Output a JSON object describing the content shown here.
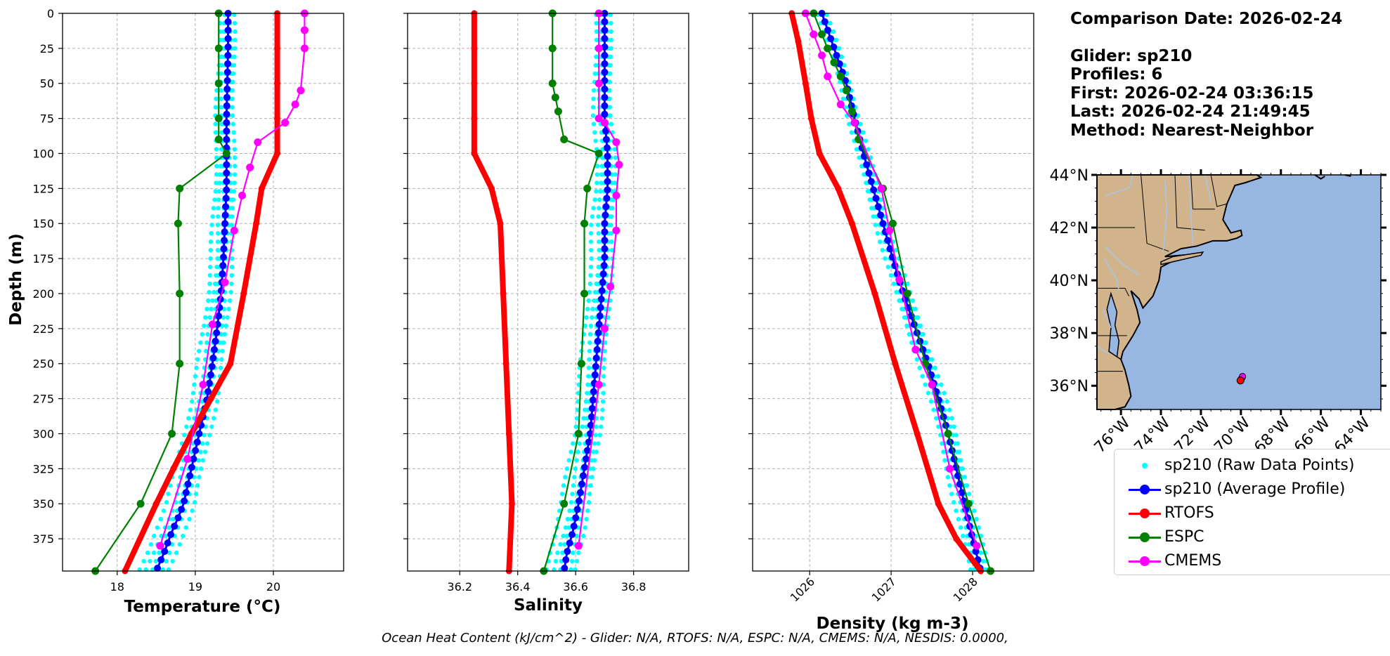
{
  "info": {
    "comparison": "Comparison Date: 2026-02-24",
    "glider": "Glider: sp210",
    "profiles": "Profiles: 6",
    "first": "First: 2026-02-24 03:36:15",
    "last": "Last: 2026-02-24 21:49:45",
    "method": "Method: Nearest-Neighbor"
  },
  "footer": "Ocean Heat Content (kJ/cm^2) - Glider: N/A,  RTOFS: N/A,  ESPC: N/A,  CMEMS: N/A,  NESDIS: 0.0000,",
  "legend": [
    {
      "label": "sp210 (Raw Data Points)",
      "color": "#00ffff",
      "style": "dots"
    },
    {
      "label": "sp210 (Average Profile)",
      "color": "#0000ff",
      "style": "line-marker"
    },
    {
      "label": "RTOFS",
      "color": "#ff0000",
      "style": "line-marker"
    },
    {
      "label": "ESPC",
      "color": "#008000",
      "style": "line-marker"
    },
    {
      "label": "CMEMS",
      "color": "#ff00ff",
      "style": "line-marker"
    }
  ],
  "chart_data": [
    {
      "type": "line",
      "xlabel": "Temperature (°C)",
      "ylabel": "Depth (m)",
      "xlim": [
        17.3,
        20.9
      ],
      "ylim": [
        398,
        0
      ],
      "xticks": [
        18,
        19,
        20
      ],
      "yticks": [
        0,
        25,
        50,
        75,
        100,
        125,
        150,
        175,
        200,
        225,
        250,
        275,
        300,
        325,
        350,
        375
      ],
      "grid": true,
      "series": [
        {
          "name": "sp210 (Average Profile)",
          "color": "#0000ff",
          "x": [
            19.42,
            19.42,
            19.41,
            19.4,
            19.4,
            19.4,
            19.38,
            19.36,
            19.33,
            19.28,
            19.22,
            19.15,
            19.05,
            18.95,
            18.85,
            18.78,
            18.7,
            18.6,
            18.5
          ],
          "y": [
            0,
            25,
            50,
            75,
            100,
            125,
            150,
            175,
            200,
            225,
            250,
            275,
            300,
            325,
            350,
            360,
            370,
            385,
            398
          ]
        },
        {
          "name": "RTOFS",
          "color": "#ff0000",
          "x": [
            20.05,
            20.05,
            20.05,
            20.05,
            20.05,
            19.85,
            19.78,
            19.62,
            19.45,
            19.2,
            18.95,
            18.72,
            18.5,
            18.1
          ],
          "y": [
            0,
            25,
            50,
            75,
            100,
            125,
            150,
            200,
            250,
            275,
            300,
            325,
            350,
            398
          ]
        },
        {
          "name": "ESPC",
          "color": "#008000",
          "x": [
            19.3,
            19.3,
            19.3,
            19.3,
            19.3,
            19.4,
            18.8,
            18.78,
            18.8,
            18.8,
            18.7,
            18.3,
            17.72
          ],
          "y": [
            0,
            25,
            50,
            75,
            90,
            100,
            125,
            150,
            200,
            250,
            300,
            350,
            398
          ]
        },
        {
          "name": "CMEMS",
          "color": "#ff00ff",
          "x": [
            20.4,
            20.4,
            20.4,
            20.35,
            20.28,
            20.15,
            19.8,
            19.7,
            19.6,
            19.5,
            19.38,
            19.22,
            19.1,
            18.9,
            18.55
          ],
          "y": [
            0,
            12,
            25,
            55,
            65,
            78,
            92,
            110,
            130,
            155,
            192,
            222,
            265,
            318,
            380
          ]
        }
      ]
    },
    {
      "type": "line",
      "xlabel": "Salinity",
      "ylabel": "Depth (m)",
      "xlim": [
        36.02,
        36.99
      ],
      "ylim": [
        398,
        0
      ],
      "xticks": [
        36.2,
        36.4,
        36.6,
        36.8
      ],
      "grid": true,
      "series": [
        {
          "name": "sp210 (Average Profile)",
          "color": "#0000ff",
          "x": [
            36.7,
            36.7,
            36.7,
            36.7,
            36.71,
            36.71,
            36.7,
            36.7,
            36.69,
            36.68,
            36.67,
            36.66,
            36.65,
            36.63,
            36.61,
            36.59,
            36.57,
            36.56
          ],
          "y": [
            0,
            25,
            50,
            75,
            100,
            125,
            150,
            175,
            200,
            225,
            250,
            275,
            300,
            325,
            350,
            370,
            385,
            398
          ]
        },
        {
          "name": "RTOFS",
          "color": "#ff0000",
          "x": [
            36.25,
            36.25,
            36.25,
            36.25,
            36.25,
            36.31,
            36.34,
            36.35,
            36.36,
            36.37,
            36.38,
            36.37
          ],
          "y": [
            0,
            25,
            50,
            75,
            100,
            125,
            150,
            200,
            250,
            300,
            350,
            398
          ]
        },
        {
          "name": "ESPC",
          "color": "#008000",
          "x": [
            36.52,
            36.52,
            36.52,
            36.53,
            36.54,
            36.56,
            36.68,
            36.64,
            36.63,
            36.63,
            36.62,
            36.61,
            36.56,
            36.49
          ],
          "y": [
            0,
            25,
            50,
            60,
            70,
            90,
            100,
            125,
            150,
            200,
            250,
            300,
            350,
            398
          ]
        },
        {
          "name": "CMEMS",
          "color": "#ff00ff",
          "x": [
            36.68,
            36.68,
            36.68,
            36.68,
            36.7,
            36.74,
            36.75,
            36.74,
            36.74,
            36.72,
            36.7,
            36.68,
            36.61
          ],
          "y": [
            0,
            25,
            50,
            75,
            78,
            92,
            108,
            130,
            155,
            195,
            225,
            265,
            380
          ]
        }
      ]
    },
    {
      "type": "line",
      "xlabel": "Density (kg m-3)",
      "ylabel": "Depth (m)",
      "xlim": [
        1025.3,
        1028.75
      ],
      "ylim": [
        398,
        0
      ],
      "xticks": [
        1026,
        1027,
        1028
      ],
      "grid": true,
      "series": [
        {
          "name": "sp210 (Average Profile)",
          "color": "#0000ff",
          "x": [
            1026.15,
            1026.3,
            1026.45,
            1026.55,
            1026.66,
            1026.78,
            1026.9,
            1027.02,
            1027.15,
            1027.3,
            1027.45,
            1027.58,
            1027.7,
            1027.8,
            1027.9,
            1028.0,
            1028.1
          ],
          "y": [
            0,
            25,
            50,
            75,
            100,
            125,
            150,
            175,
            200,
            225,
            250,
            275,
            300,
            325,
            350,
            375,
            398
          ]
        },
        {
          "name": "RTOFS",
          "color": "#ff0000",
          "x": [
            1025.78,
            1025.86,
            1025.95,
            1026.02,
            1026.12,
            1026.35,
            1026.52,
            1026.8,
            1027.05,
            1027.32,
            1027.58,
            1027.8,
            1028.1
          ],
          "y": [
            0,
            20,
            50,
            75,
            100,
            125,
            150,
            200,
            250,
            300,
            350,
            375,
            398
          ]
        },
        {
          "name": "ESPC",
          "color": "#008000",
          "x": [
            1026.05,
            1026.15,
            1026.22,
            1026.3,
            1026.38,
            1026.45,
            1026.52,
            1026.6,
            1026.9,
            1027.02,
            1027.2,
            1027.42,
            1027.7,
            1027.95,
            1028.22
          ],
          "y": [
            0,
            15,
            25,
            35,
            45,
            55,
            70,
            90,
            125,
            150,
            200,
            250,
            300,
            350,
            398
          ]
        },
        {
          "name": "CMEMS",
          "color": "#ff00ff",
          "x": [
            1025.95,
            1026.05,
            1026.15,
            1026.22,
            1026.38,
            1026.55,
            1026.88,
            1026.98,
            1027.1,
            1027.3,
            1027.5,
            1027.72,
            1028.05
          ],
          "y": [
            0,
            15,
            30,
            45,
            65,
            78,
            125,
            155,
            190,
            240,
            265,
            325,
            380
          ]
        }
      ]
    }
  ],
  "map": {
    "lat_labels": [
      "44°N",
      "42°N",
      "40°N",
      "38°N",
      "36°N"
    ],
    "lon_labels": [
      "76°W",
      "74°W",
      "72°W",
      "70°W",
      "68°W",
      "66°W",
      "64°W"
    ],
    "land_color": "#d2b48c",
    "ocean_color": "#97b6e1",
    "glider_marker_color": "#ff0000"
  }
}
